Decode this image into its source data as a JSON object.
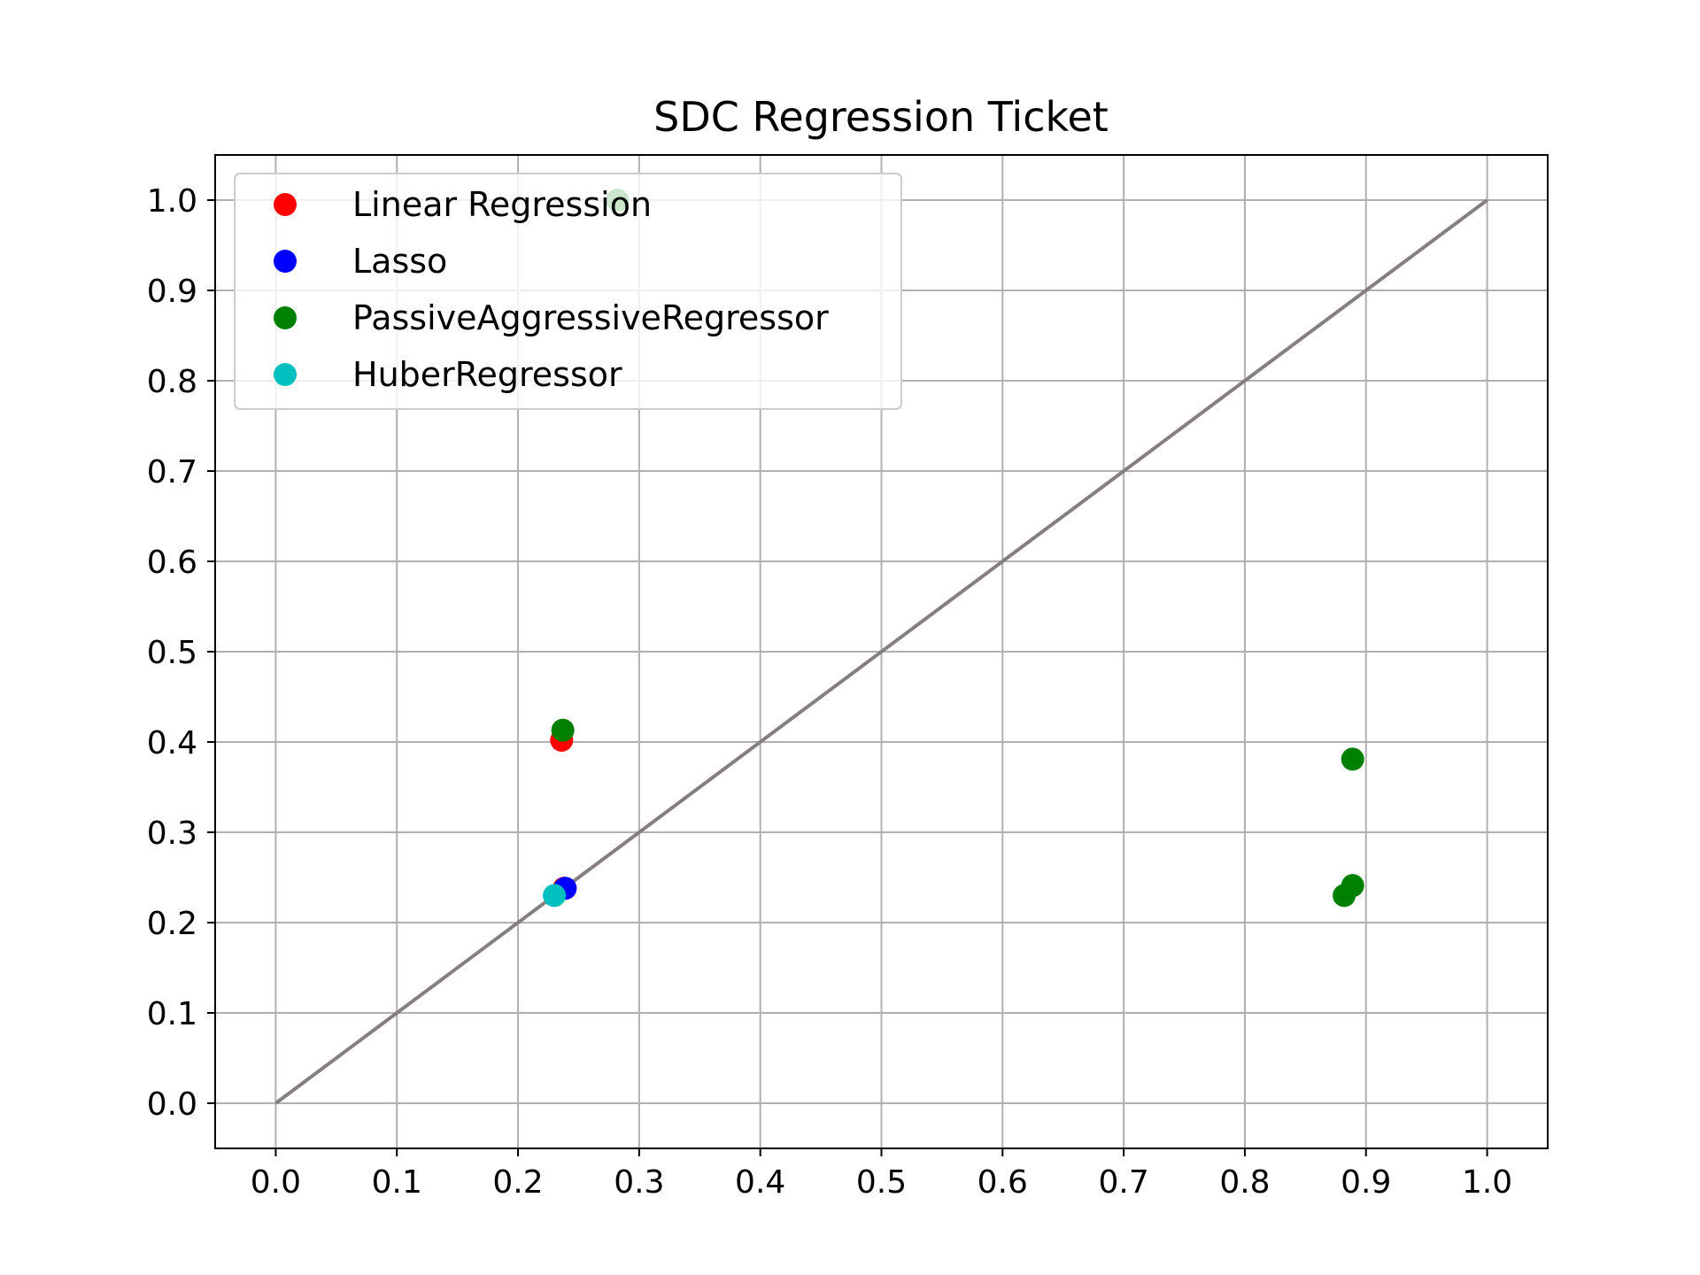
{
  "chart_data": {
    "type": "scatter",
    "title": "SDC Regression Ticket",
    "xlabel": "",
    "ylabel": "",
    "xlim": [
      -0.05,
      1.05
    ],
    "ylim": [
      -0.05,
      1.05
    ],
    "x_ticks": [
      "0.0",
      "0.1",
      "0.2",
      "0.3",
      "0.4",
      "0.5",
      "0.6",
      "0.7",
      "0.8",
      "0.9",
      "1.0"
    ],
    "y_ticks": [
      "0.0",
      "0.1",
      "0.2",
      "0.3",
      "0.4",
      "0.5",
      "0.6",
      "0.7",
      "0.8",
      "0.9",
      "1.0"
    ],
    "grid": true,
    "legend_position": "top-left",
    "reference_line": {
      "x": [
        0,
        1
      ],
      "y": [
        0,
        1
      ],
      "color": "#857f7f"
    },
    "series": [
      {
        "name": "Linear Regression",
        "color": "#ff0000",
        "points": [
          [
            0.236,
            0.402
          ],
          [
            0.238,
            0.238
          ]
        ]
      },
      {
        "name": "Lasso",
        "color": "#0000ff",
        "points": [
          [
            0.239,
            0.238
          ]
        ]
      },
      {
        "name": "PassiveAggressiveRegressor",
        "color": "#008000",
        "points": [
          [
            0.282,
            1.0
          ],
          [
            0.237,
            0.413
          ],
          [
            0.889,
            0.381
          ],
          [
            0.889,
            0.241
          ],
          [
            0.882,
            0.23
          ]
        ]
      },
      {
        "name": "HuberRegressor",
        "color": "#00bfbf",
        "points": [
          [
            0.23,
            0.23
          ]
        ]
      }
    ]
  }
}
